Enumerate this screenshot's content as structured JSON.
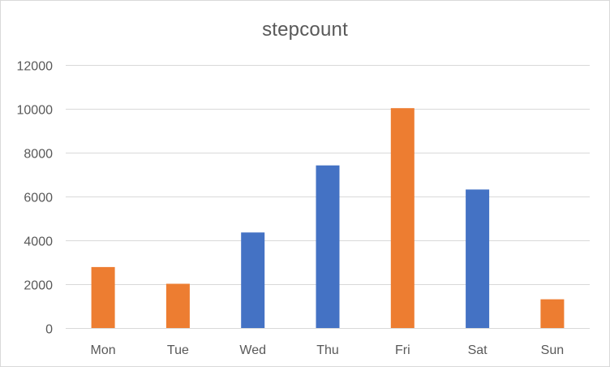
{
  "chart_data": {
    "type": "bar",
    "title": "stepcount",
    "xlabel": "",
    "ylabel": "",
    "categories": [
      "Mon",
      "Tue",
      "Wed",
      "Thu",
      "Fri",
      "Sat",
      "Sun"
    ],
    "values": [
      2780,
      2020,
      4360,
      7420,
      10030,
      6320,
      1310
    ],
    "bar_colors": [
      "#ED7D31",
      "#ED7D31",
      "#4472C4",
      "#4472C4",
      "#ED7D31",
      "#4472C4",
      "#ED7D31"
    ],
    "ylim": [
      0,
      12000
    ],
    "yticks": [
      0,
      2000,
      4000,
      6000,
      8000,
      10000,
      12000
    ],
    "grid": true,
    "legend": "none"
  }
}
